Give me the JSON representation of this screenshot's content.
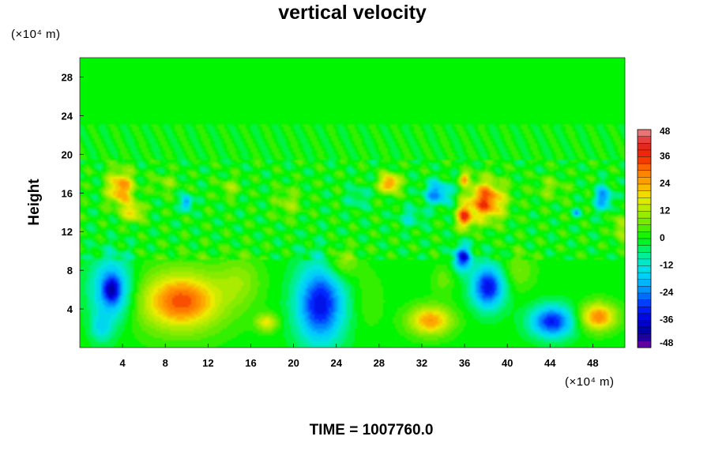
{
  "chart_data": {
    "type": "heatmap",
    "title": "vertical velocity",
    "xlabel": "",
    "ylabel": "Height",
    "x_unit": "(×10⁴ m)",
    "y_unit": "(×10⁴ m)",
    "xlim": [
      0,
      51
    ],
    "ylim": [
      0,
      30
    ],
    "x_ticks": [
      4,
      8,
      12,
      16,
      20,
      24,
      28,
      32,
      36,
      40,
      44,
      48
    ],
    "y_ticks": [
      4,
      8,
      12,
      16,
      20,
      24,
      28
    ],
    "colorbar": {
      "min": -48,
      "max": 48,
      "ticks": [
        48,
        36,
        24,
        12,
        0,
        -12,
        -24,
        -36,
        -48
      ]
    },
    "features": [
      {
        "x": 9.5,
        "y": 4.8,
        "rx": 4.2,
        "ry": 3.2,
        "value": 24
      },
      {
        "x": 9.5,
        "y": 4.8,
        "rx": 2.5,
        "ry": 2.0,
        "value": 10
      },
      {
        "x": 3.0,
        "y": 6.0,
        "rx": 1.9,
        "ry": 3.2,
        "value": -26
      },
      {
        "x": 3.0,
        "y": 6.0,
        "rx": 0.7,
        "ry": 1.3,
        "value": -18
      },
      {
        "x": 22.5,
        "y": 4.5,
        "rx": 2.2,
        "ry": 4.0,
        "value": -34
      },
      {
        "x": 32.8,
        "y": 2.8,
        "rx": 2.0,
        "ry": 1.5,
        "value": 26
      },
      {
        "x": 44.2,
        "y": 2.7,
        "rx": 2.0,
        "ry": 1.6,
        "value": -32
      },
      {
        "x": 48.5,
        "y": 3.2,
        "rx": 1.7,
        "ry": 1.4,
        "value": 28
      },
      {
        "x": 38.2,
        "y": 6.3,
        "rx": 1.5,
        "ry": 2.2,
        "value": -34
      },
      {
        "x": 35.8,
        "y": 9.3,
        "rx": 0.8,
        "ry": 1.3,
        "value": -32
      },
      {
        "x": 38.0,
        "y": 15.2,
        "rx": 1.7,
        "ry": 2.0,
        "value": 34
      },
      {
        "x": 36.0,
        "y": 13.5,
        "rx": 0.7,
        "ry": 1.2,
        "value": 32
      },
      {
        "x": 3.8,
        "y": 16.5,
        "rx": 1.2,
        "ry": 1.8,
        "value": 28
      },
      {
        "x": 5.0,
        "y": 14.0,
        "rx": 0.9,
        "ry": 1.0,
        "value": 20
      },
      {
        "x": 29.0,
        "y": 17.0,
        "rx": 0.9,
        "ry": 1.0,
        "value": 30
      },
      {
        "x": 33.5,
        "y": 16.0,
        "rx": 1.2,
        "ry": 1.2,
        "value": -24
      },
      {
        "x": 10.0,
        "y": 15.0,
        "rx": 0.5,
        "ry": 0.8,
        "value": -26
      },
      {
        "x": 49.0,
        "y": 15.5,
        "rx": 0.8,
        "ry": 1.2,
        "value": -24
      },
      {
        "x": 36.0,
        "y": 17.5,
        "rx": 0.5,
        "ry": 0.6,
        "value": 22
      },
      {
        "x": 24.5,
        "y": 8.8,
        "rx": 1.5,
        "ry": 1.7,
        "value": 12
      },
      {
        "x": 17.5,
        "y": 2.6,
        "rx": 1.0,
        "ry": 0.9,
        "value": 18
      },
      {
        "x": 15.0,
        "y": 7.0,
        "rx": 2.0,
        "ry": 2.5,
        "value": 8
      },
      {
        "x": 2.0,
        "y": 2.0,
        "rx": 1.0,
        "ry": 1.5,
        "value": -12
      },
      {
        "x": 27.0,
        "y": 5.0,
        "rx": 1.5,
        "ry": 3.0,
        "value": 4
      },
      {
        "x": 41.0,
        "y": 8.0,
        "rx": 1.5,
        "ry": 2.0,
        "value": 8
      },
      {
        "x": 19.5,
        "y": 15.0,
        "rx": 1.2,
        "ry": 1.5,
        "value": 10
      },
      {
        "x": 14.0,
        "y": 16.5,
        "rx": 1.0,
        "ry": 1.0,
        "value": 10
      },
      {
        "x": 44.0,
        "y": 16.5,
        "rx": 1.5,
        "ry": 1.2,
        "value": 8
      },
      {
        "x": 31.0,
        "y": 13.5,
        "rx": 1.2,
        "ry": 1.0,
        "value": -10
      },
      {
        "x": 46.5,
        "y": 14.0,
        "rx": 0.4,
        "ry": 0.4,
        "value": -18
      },
      {
        "x": 26.0,
        "y": 15.5,
        "rx": 1.0,
        "ry": 1.2,
        "value": -8
      },
      {
        "x": 8.0,
        "y": 17.0,
        "rx": 1.2,
        "ry": 1.0,
        "value": 8
      },
      {
        "x": 50.5,
        "y": 12.5,
        "rx": 0.6,
        "ry": 1.5,
        "value": 14
      },
      {
        "x": 34.0,
        "y": 7.0,
        "rx": 1.0,
        "ry": 1.5,
        "value": 6
      }
    ]
  },
  "footer": {
    "time_label": "TIME = 1007760.0"
  }
}
